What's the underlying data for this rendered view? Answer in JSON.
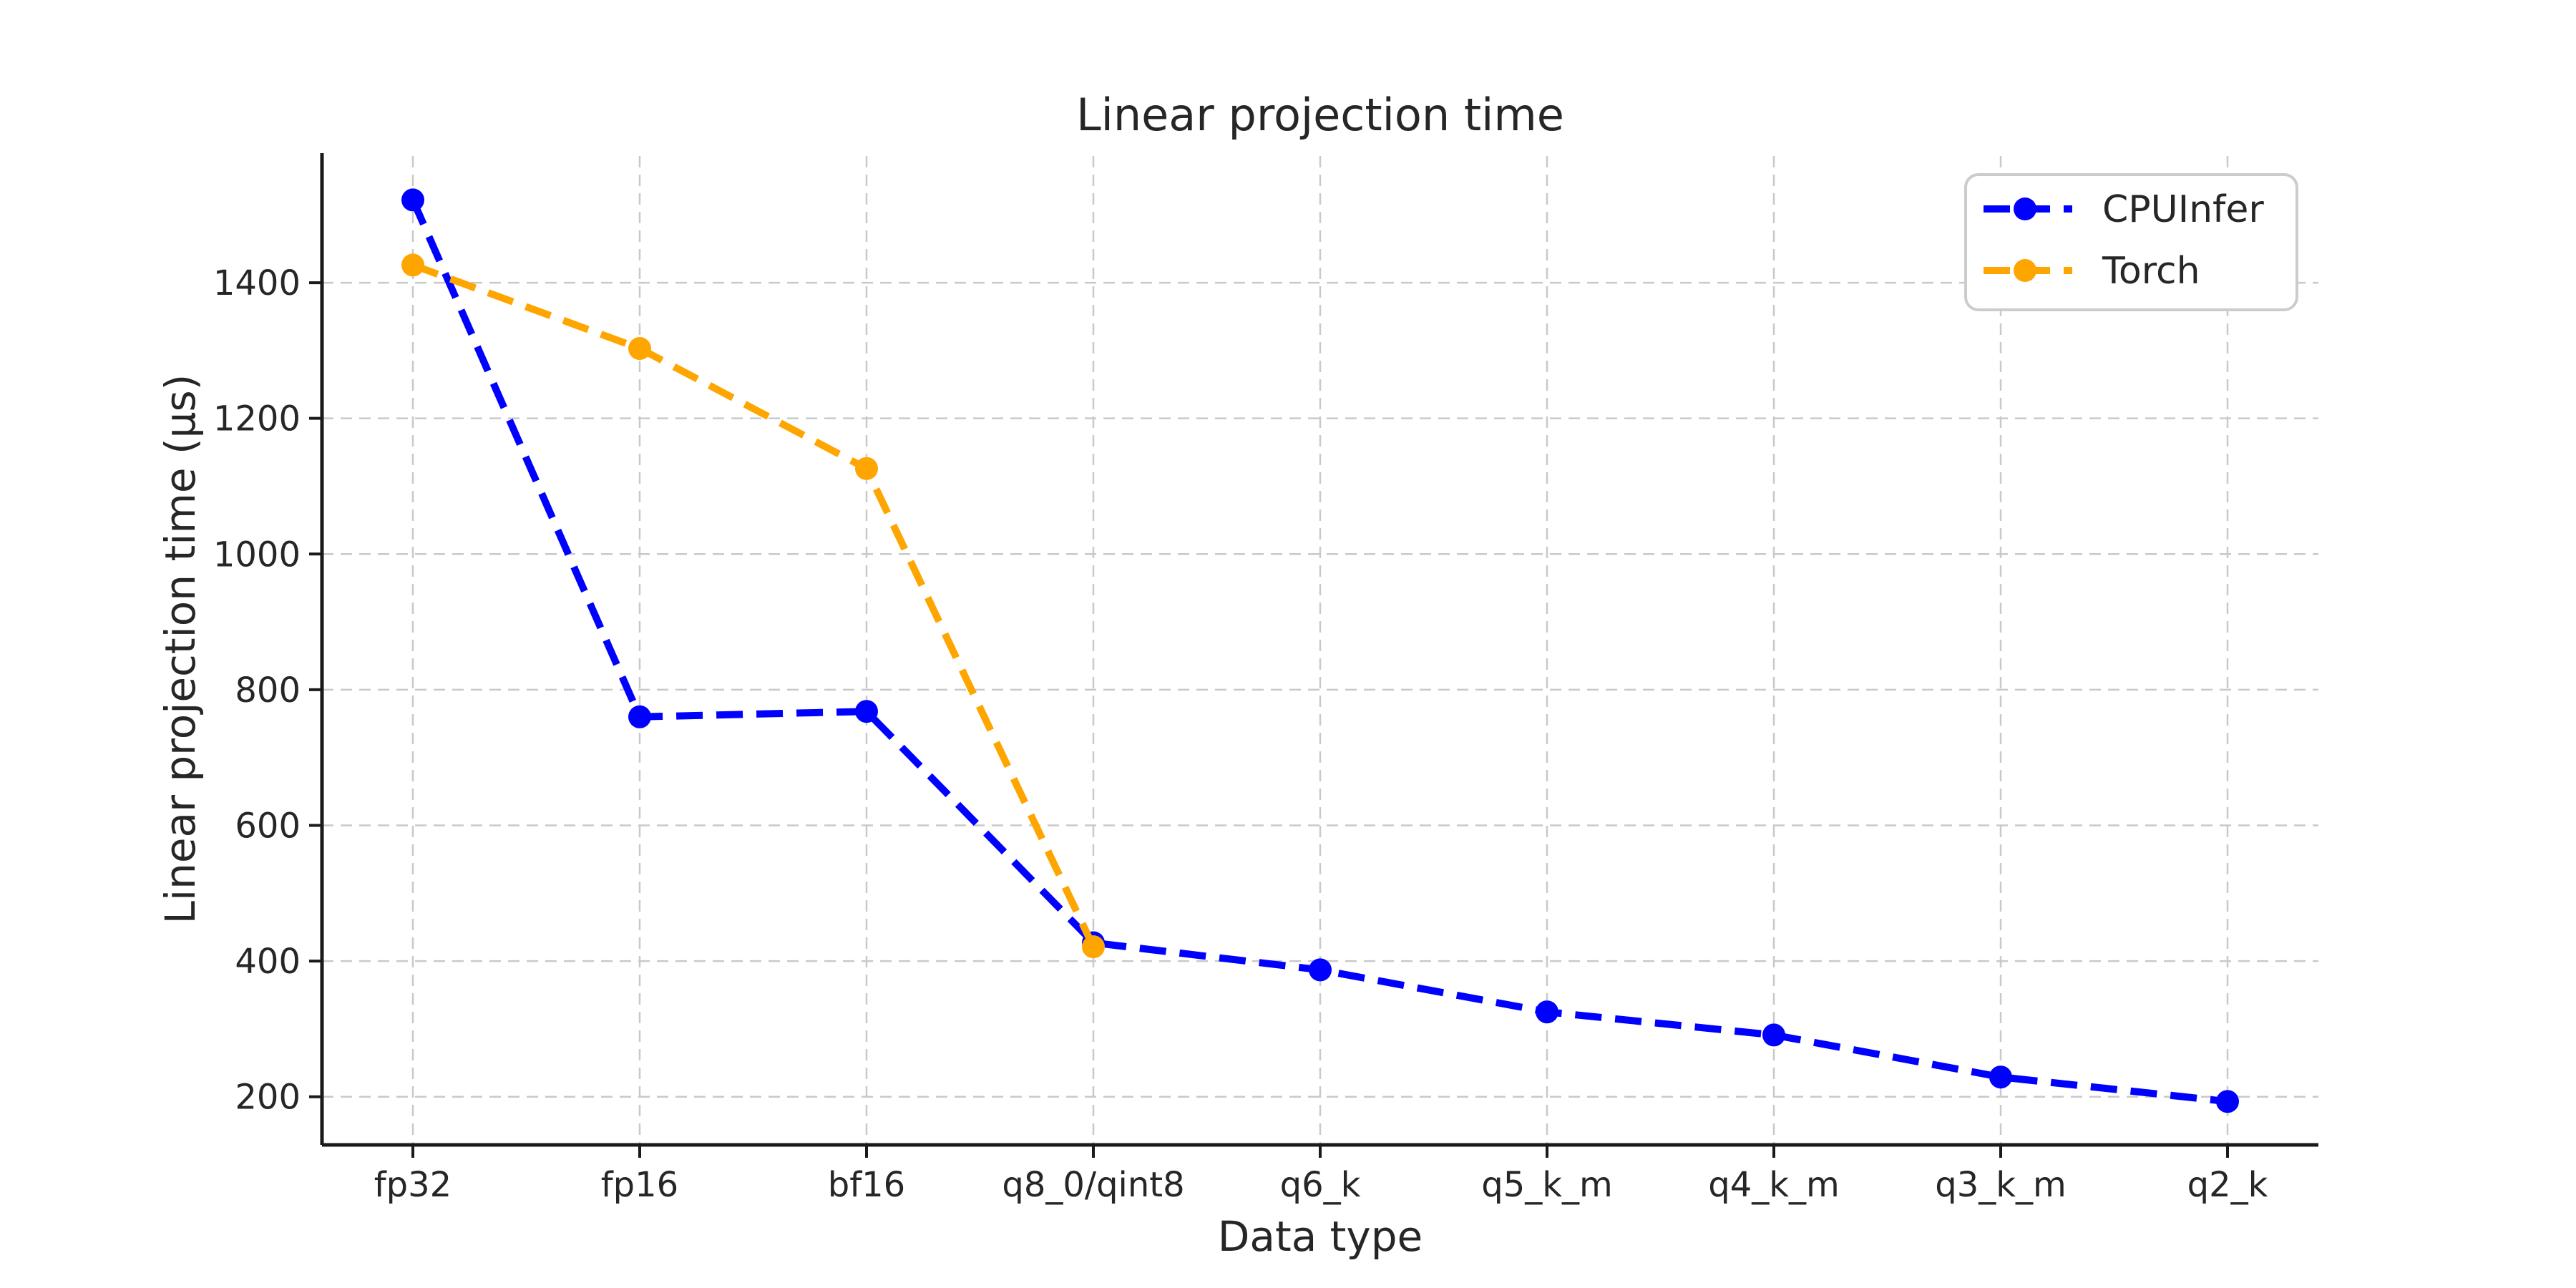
{
  "figure": {
    "background": "#ffffff"
  },
  "chart_data": {
    "type": "line",
    "title": "Linear projection time",
    "xlabel": "Data type",
    "ylabel": "Linear projection time (μs)",
    "categories": [
      "fp32",
      "fp16",
      "bf16",
      "q8_0/qint8",
      "q6_k",
      "q5_k_m",
      "q4_k_m",
      "q3_k_m",
      "q2_k"
    ],
    "series": [
      {
        "name": "CPUInfer",
        "color": "#0000ff",
        "linestyle": "dashed",
        "marker": "circle",
        "values": [
          1522,
          760,
          768,
          427,
          387,
          325,
          291,
          229,
          193
        ]
      },
      {
        "name": "Torch",
        "color": "#ffa500",
        "linestyle": "dashed",
        "marker": "circle",
        "values": [
          1426,
          1303,
          1126,
          421,
          null,
          null,
          null,
          null,
          null
        ]
      }
    ],
    "yticks": [
      200,
      400,
      600,
      800,
      1000,
      1200,
      1400
    ],
    "ylim": [
      129,
      1591
    ],
    "grid": true,
    "grid_on": "both",
    "grid_color": "#c9c9c9",
    "spine_color": "#1a1a1a",
    "text_color": "#262626",
    "legend_position": "upper right",
    "legend_border_color": "#cccccc"
  }
}
